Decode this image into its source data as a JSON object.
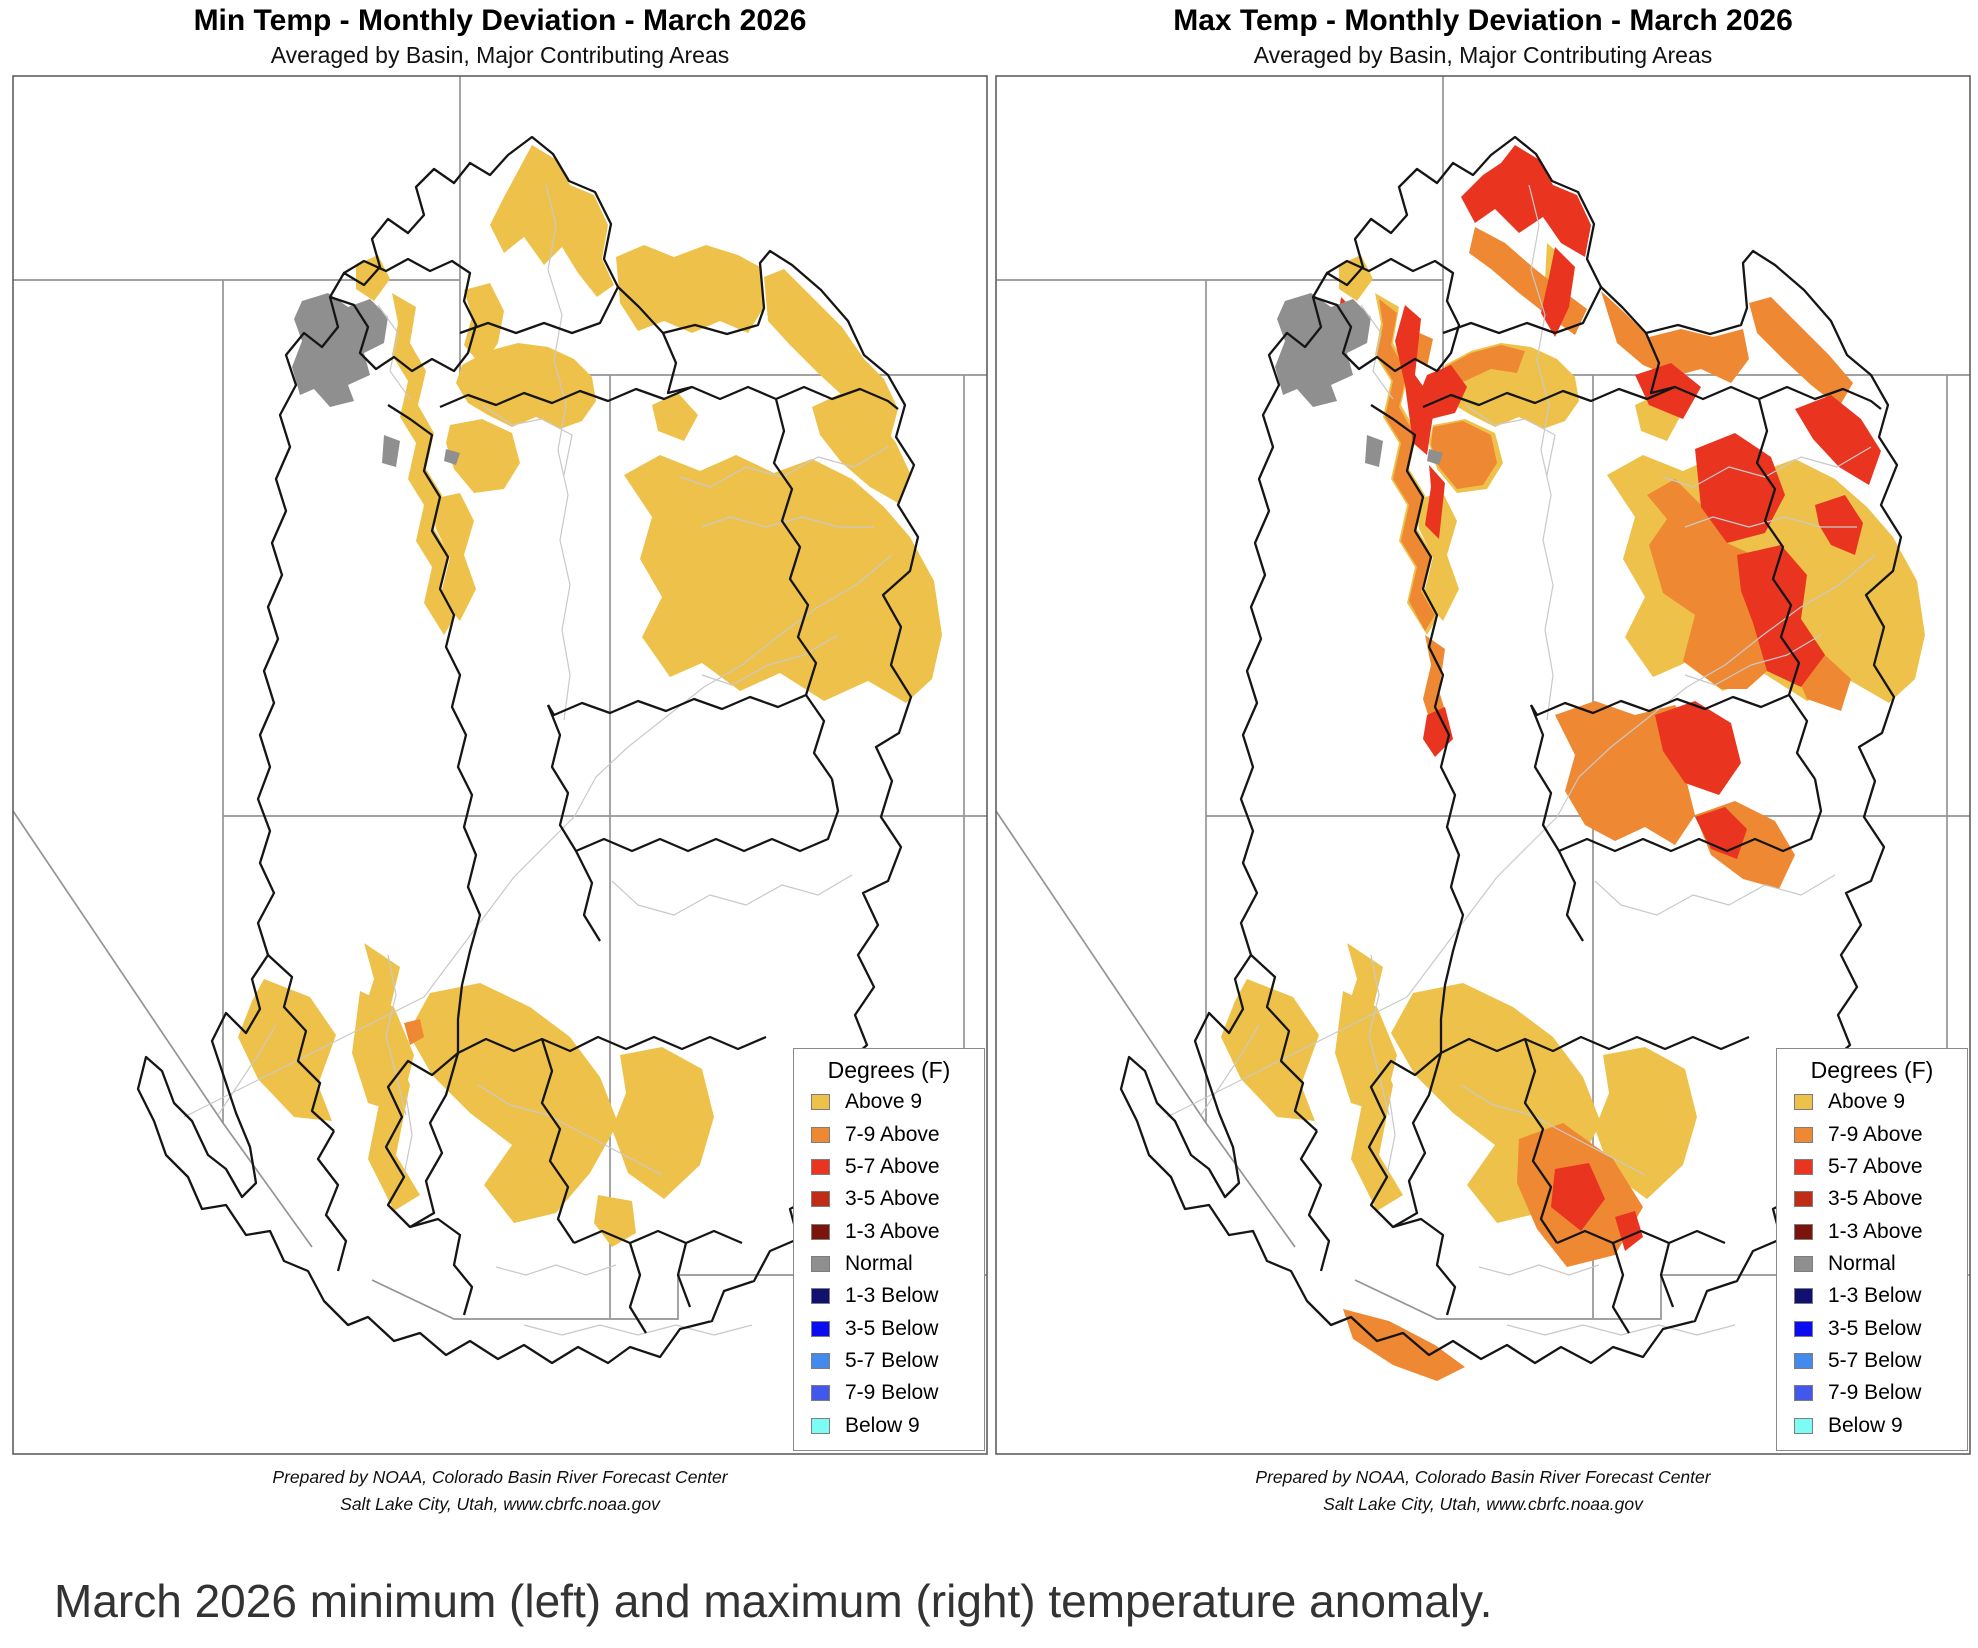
{
  "panels": [
    {
      "id": "min",
      "title": "Min Temp - Monthly Deviation - March 2026",
      "subtitle": "Averaged by Basin, Major Contributing Areas"
    },
    {
      "id": "max",
      "title": "Max Temp - Monthly Deviation - March 2026",
      "subtitle": "Averaged by Basin, Major Contributing Areas"
    }
  ],
  "legend": {
    "title": "Degrees (F)",
    "items": [
      {
        "key": "above9",
        "label": "Above 9",
        "color": "#EEC24A"
      },
      {
        "key": "a79",
        "label": "7-9 Above",
        "color": "#EE8833"
      },
      {
        "key": "a57",
        "label": "5-7 Above",
        "color": "#E93420"
      },
      {
        "key": "a35",
        "label": "3-5 Above",
        "color": "#BF2D16"
      },
      {
        "key": "a13",
        "label": "1-3 Above",
        "color": "#7B140C"
      },
      {
        "key": "normal",
        "label": "Normal",
        "color": "#8F8F8F"
      },
      {
        "key": "b13",
        "label": "1-3 Below",
        "color": "#10106E"
      },
      {
        "key": "b35",
        "label": "3-5 Below",
        "color": "#0B0BEF"
      },
      {
        "key": "b57",
        "label": "5-7 Below",
        "color": "#4489EC"
      },
      {
        "key": "b79",
        "label": "7-9 Below",
        "color": "#4257EB"
      },
      {
        "key": "below9",
        "label": "Below 9",
        "color": "#7CFCF4"
      }
    ]
  },
  "footer": {
    "line1": "Prepared by NOAA, Colorado Basin River Forecast Center",
    "line2": "Salt Lake City, Utah, www.cbrfc.noaa.gov"
  },
  "caption": "March 2026 minimum (left) and maximum (right) temperature anomaly."
}
